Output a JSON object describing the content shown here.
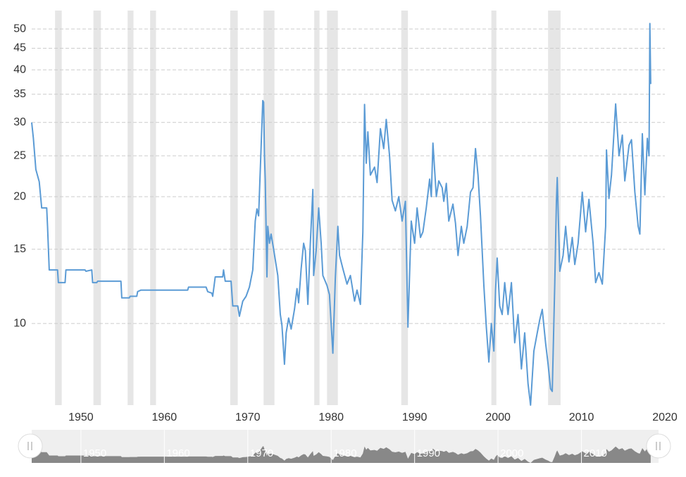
{
  "chart_data": {
    "type": "line",
    "log_scale": true,
    "grid": true,
    "xlim": [
      1944.1,
      2020
    ],
    "ylim": [
      6.4,
      53.2
    ],
    "xticks": [
      1950,
      1960,
      1970,
      1980,
      1990,
      2000,
      2010,
      2020
    ],
    "yticks": [
      10,
      15,
      20,
      25,
      30,
      35,
      40,
      45,
      50
    ],
    "shaded_ranges": [
      [
        1946.9,
        1947.7
      ],
      [
        1951.5,
        1952.4
      ],
      [
        1955.6,
        1956.3
      ],
      [
        1958.3,
        1959.0
      ],
      [
        1967.9,
        1968.8
      ],
      [
        1971.9,
        1973.2
      ],
      [
        1977.97,
        1978.6
      ],
      [
        1979.5,
        1980.8
      ],
      [
        1988.4,
        1989.2
      ],
      [
        1999.2,
        1999.8
      ],
      [
        2006.0,
        2007.5
      ]
    ],
    "shade_color": "#e6e6e6",
    "x": [
      1944.1,
      1944.3,
      1944.6,
      1945.0,
      1945.3,
      1945.9,
      1946.0,
      1946.2,
      1947.2,
      1947.3,
      1948.1,
      1948.2,
      1950.5,
      1950.6,
      1951.3,
      1951.4,
      1951.9,
      1952.0,
      1954.8,
      1954.9,
      1955.8,
      1955.9,
      1956.7,
      1956.8,
      1957.2,
      1962.8,
      1962.9,
      1965.0,
      1965.2,
      1965.7,
      1965.8,
      1966.1,
      1967.0,
      1967.1,
      1967.3,
      1968.0,
      1968.2,
      1968.8,
      1969.0,
      1969.4,
      1969.8,
      1970.2,
      1970.6,
      1970.9,
      1971.1,
      1971.3,
      1971.5,
      1971.8,
      1971.9,
      1972.0,
      1972.1,
      1972.3,
      1972.4,
      1972.6,
      1972.8,
      1973.1,
      1973.6,
      1973.9,
      1974.1,
      1974.4,
      1974.6,
      1974.9,
      1975.2,
      1975.6,
      1975.9,
      1976.1,
      1976.4,
      1976.7,
      1976.9,
      1977.2,
      1977.5,
      1977.8,
      1977.9,
      1978.2,
      1978.5,
      1978.8,
      1979.0,
      1979.5,
      1979.8,
      1980.2,
      1980.5,
      1980.8,
      1981.0,
      1981.4,
      1981.9,
      1982.3,
      1982.8,
      1983.1,
      1983.5,
      1983.8,
      1984.0,
      1984.2,
      1984.4,
      1984.7,
      1985.2,
      1985.5,
      1985.9,
      1986.3,
      1986.6,
      1987.0,
      1987.3,
      1987.7,
      1988.1,
      1988.5,
      1988.9,
      1989.2,
      1989.6,
      1990.0,
      1990.3,
      1990.7,
      1991.0,
      1991.4,
      1991.8,
      1992.0,
      1992.2,
      1992.6,
      1992.9,
      1993.3,
      1993.5,
      1993.8,
      1994.1,
      1994.6,
      1994.9,
      1995.2,
      1995.6,
      1995.9,
      1996.3,
      1996.7,
      1997.0,
      1997.3,
      1997.6,
      1997.9,
      1998.3,
      1998.6,
      1998.9,
      1999.2,
      1999.5,
      1999.7,
      1999.9,
      2000.2,
      2000.5,
      2000.8,
      2001.2,
      2001.6,
      2002.0,
      2002.4,
      2002.8,
      2003.2,
      2003.6,
      2003.9,
      2004.3,
      2004.7,
      2005.0,
      2005.3,
      2005.7,
      2006.0,
      2006.3,
      2006.5,
      2006.8,
      2007.0,
      2007.1,
      2007.4,
      2007.8,
      2008.1,
      2008.5,
      2008.9,
      2009.2,
      2009.6,
      2010.1,
      2010.5,
      2010.9,
      2011.4,
      2011.7,
      2012.1,
      2012.5,
      2012.9,
      2013.0,
      2013.3,
      2013.6,
      2014.1,
      2014.5,
      2014.9,
      2015.2,
      2015.7,
      2016.0,
      2016.4,
      2016.8,
      2017.0,
      2017.3,
      2017.6,
      2017.9,
      2018.1,
      2018.2,
      2018.3
    ],
    "series": [
      {
        "color": "#5b9bd5",
        "values": [
          30,
          27.5,
          23.2,
          21.7,
          18.8,
          18.8,
          17,
          13.4,
          13.4,
          12.5,
          12.5,
          13.4,
          13.4,
          13.3,
          13.4,
          12.5,
          12.5,
          12.6,
          12.6,
          11.5,
          11.5,
          11.6,
          11.6,
          11.9,
          12.0,
          12.0,
          12.2,
          12.2,
          11.9,
          11.8,
          11.6,
          12.9,
          12.9,
          13.4,
          12.6,
          12.6,
          11.0,
          11.0,
          10.4,
          11.3,
          11.6,
          12.2,
          13.4,
          17.5,
          18.7,
          18.0,
          23,
          33.8,
          33.5,
          25,
          22,
          12.9,
          17,
          15.5,
          16.3,
          15,
          13,
          10.5,
          9.9,
          8.0,
          9.5,
          10.3,
          9.7,
          10.8,
          12.1,
          11.2,
          13.5,
          15.5,
          14.9,
          11.1,
          15.5,
          20.8,
          13,
          14.9,
          18.8,
          15.5,
          13,
          12.3,
          11.7,
          8.5,
          12.8,
          17,
          14.5,
          13.5,
          12.4,
          13,
          11.3,
          12,
          11.1,
          16.5,
          33.1,
          24,
          28.5,
          22.5,
          23.5,
          21.6,
          29,
          26,
          30.5,
          25,
          19.6,
          18.5,
          20,
          17.5,
          19.5,
          9.8,
          17.5,
          15.5,
          18.8,
          16,
          16.5,
          18.8,
          22,
          20,
          26.8,
          20,
          21.8,
          21,
          19.5,
          21.5,
          17.5,
          19.2,
          17.3,
          14.5,
          17,
          15.5,
          17,
          20.5,
          21,
          26,
          22.5,
          18,
          12.3,
          9.8,
          8.1,
          10,
          8.6,
          12,
          14.3,
          11,
          10.5,
          12.5,
          10.5,
          12.5,
          9,
          10.5,
          7.8,
          9.5,
          7.2,
          6.4,
          8.6,
          9.5,
          10.2,
          10.8,
          9,
          8,
          7.0,
          6.9,
          12.5,
          19.5,
          22.2,
          13.3,
          14.5,
          17,
          14,
          16,
          13.8,
          15.5,
          20.5,
          16.5,
          19.7,
          15.5,
          12.5,
          13.2,
          12.4,
          17,
          25.8,
          19.8,
          22.5,
          33.2,
          25,
          28,
          21.8,
          26.5,
          27.3,
          20.5,
          17,
          16.3,
          28.2,
          20.2,
          27.5,
          25,
          51.5,
          37
        ]
      }
    ]
  }
}
